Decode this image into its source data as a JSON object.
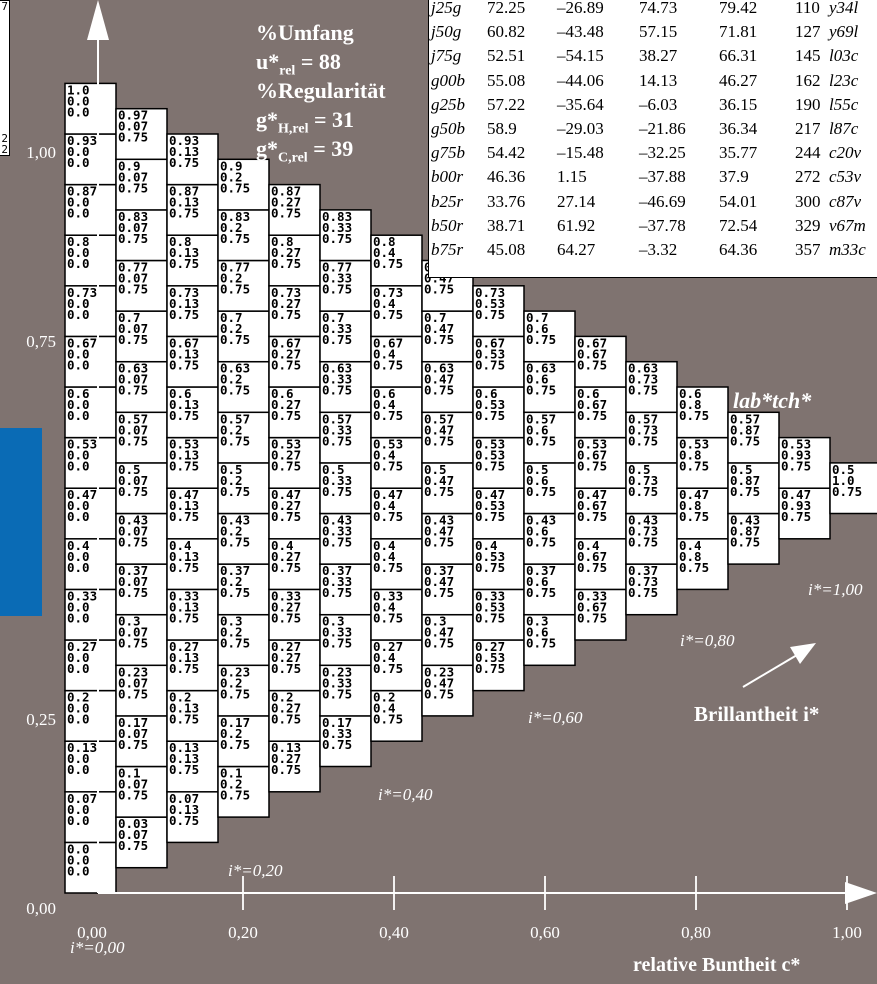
{
  "corner_box": {
    "values": [
      "7",
      "2",
      "2"
    ]
  },
  "data_table": {
    "rows": [
      {
        "name": "j25g",
        "l": "72.25",
        "a": "–26.89",
        "b": "74.73",
        "c": "79.42",
        "h": "110",
        "code": "y34l"
      },
      {
        "name": "j50g",
        "l": "60.82",
        "a": "–43.48",
        "b": "57.15",
        "c": "71.81",
        "h": "127",
        "code": "y69l"
      },
      {
        "name": "j75g",
        "l": "52.51",
        "a": "–54.15",
        "b": "38.27",
        "c": "66.31",
        "h": "145",
        "code": "l03c"
      },
      {
        "name": "g00b",
        "l": "55.08",
        "a": "–44.06",
        "b": "14.13",
        "c": "46.27",
        "h": "162",
        "code": "l23c"
      },
      {
        "name": "g25b",
        "l": "57.22",
        "a": "–35.64",
        "b": "–6.03",
        "c": "36.15",
        "h": "190",
        "code": "l55c"
      },
      {
        "name": "g50b",
        "l": "58.9",
        "a": "–29.03",
        "b": "–21.86",
        "c": "36.34",
        "h": "217",
        "code": "l87c"
      },
      {
        "name": "g75b",
        "l": "54.42",
        "a": "–15.48",
        "b": "–32.25",
        "c": "35.77",
        "h": "244",
        "code": "c20v"
      },
      {
        "name": "b00r",
        "l": "46.36",
        "a": "1.15",
        "b": "–37.88",
        "c": "37.9",
        "h": "272",
        "code": "c53v"
      },
      {
        "name": "b25r",
        "l": "33.76",
        "a": "27.14",
        "b": "–46.69",
        "c": "54.01",
        "h": "300",
        "code": "c87v"
      },
      {
        "name": "b50r",
        "l": "38.71",
        "a": "61.92",
        "b": "–37.78",
        "c": "72.54",
        "h": "329",
        "code": "v67m"
      },
      {
        "name": "b75r",
        "l": "45.08",
        "a": "64.27",
        "b": "–3.32",
        "c": "64.36",
        "h": "357",
        "code": "m33c"
      }
    ]
  },
  "stats": {
    "umfang_label": "%Umfang",
    "u_main": "u*",
    "u_sub": "rel",
    "u_value": " = 88",
    "regularitaet_label": "%Regularität",
    "gh_main": "g*",
    "gh_sub": "H,rel",
    "gh_value": " = 31",
    "gc_main": "g*",
    "gc_sub": "C,rel",
    "gc_value": " = 39"
  },
  "chart_data": {
    "type": "table",
    "title": "lab*tch*",
    "xlabel": "relative Buntheit c*",
    "ylabel": "",
    "xlim": [
      0,
      1
    ],
    "ylim": [
      0,
      1
    ],
    "x_ticks": [
      "0,00",
      "0,20",
      "0,40",
      "0,60",
      "0,80",
      "1,00"
    ],
    "y_ticks": [
      "0,00",
      "0,25",
      "0,75",
      "1,00"
    ],
    "y_tick_values": [
      0,
      0.25,
      0.75,
      1.0
    ],
    "diagonal_label": "Brillantheit i*",
    "i_labels": [
      "i*=0,00",
      "i*=0,20",
      "i*=0,40",
      "i*=0,60",
      "i*=0,80",
      "i*=1,00"
    ],
    "grid_steps": 15,
    "cell_values": [
      [
        "0.0",
        "0.03",
        "0.07",
        "0.1",
        "0.13",
        "0.17",
        "0.2",
        "0.23",
        "0.27",
        "0.3",
        "0.33",
        "0.37",
        "0.4",
        "0.43",
        "0.47",
        "0.5",
        "0.53",
        "0.57",
        "0.6",
        "0.63",
        "0.67",
        "0.7",
        "0.73",
        "0.77",
        "0.8",
        "0.83",
        "0.87",
        "0.9",
        "0.93",
        "0.97",
        "1.0"
      ],
      [
        "0.0",
        "0.07",
        "0.13",
        "0.2",
        "0.27",
        "0.33",
        "0.4",
        "0.47",
        "0.53",
        "0.6",
        "0.67",
        "0.73",
        "0.8",
        "0.87",
        "0.93",
        "1.0"
      ]
    ],
    "third_values": [
      "0.0",
      "0.75"
    ]
  }
}
